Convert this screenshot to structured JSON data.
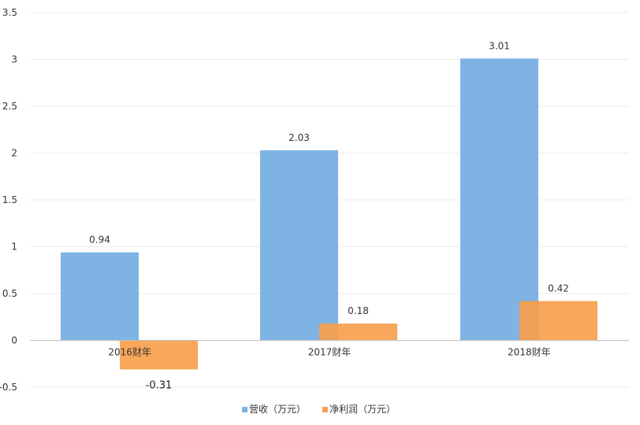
{
  "chart_data": {
    "type": "bar",
    "title": "",
    "xlabel": "",
    "ylabel": "",
    "categories": [
      "2016财年",
      "2017财年",
      "2018财年"
    ],
    "series": [
      {
        "name": "营收（万元）",
        "values": [
          0.94,
          2.03,
          3.01
        ],
        "color": "#7fb3e3"
      },
      {
        "name": "净利润（万元）",
        "values": [
          -0.31,
          0.18,
          0.42
        ],
        "color": "#f7a04d"
      }
    ],
    "value_labels": [
      [
        "0.94",
        "2.03",
        "3.01"
      ],
      [
        "-0.31",
        "0.18",
        "0.42"
      ]
    ],
    "ylim": [
      -0.5,
      3.5
    ],
    "yticks": [
      -0.5,
      0,
      0.5,
      1,
      1.5,
      2,
      2.5,
      3,
      3.5
    ],
    "ytick_labels": [
      "-0.5",
      "0",
      "0.5",
      "1",
      "1.5",
      "2",
      "2.5",
      "3",
      "3.5"
    ],
    "grid": true,
    "legend_position": "bottom-center",
    "grid_color": "#ebebeb",
    "axis_color": "#bfbfbf"
  }
}
